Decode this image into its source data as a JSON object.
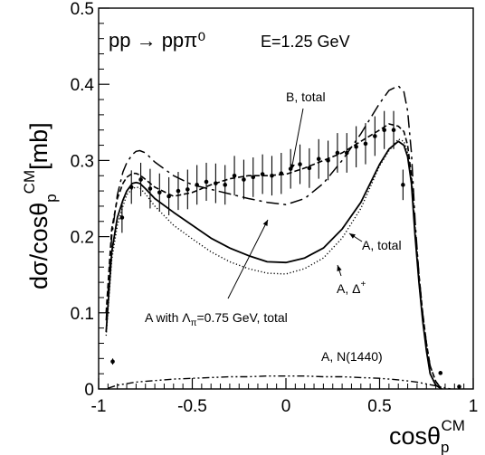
{
  "chart_data": {
    "type": "line",
    "title": "",
    "process": "pp → ppπ⁰",
    "energy": "E=1.25 GeV",
    "ylabel": "dσ/cosθ_p^CM[mb]",
    "xlabel": "cosθ_p^CM",
    "xlim": [
      -1,
      1
    ],
    "ylim": [
      0,
      0.5
    ],
    "xticks": [
      -1,
      -0.5,
      0,
      0.5,
      1
    ],
    "xtick_labels": [
      "-1",
      "-0.5",
      "0",
      "0.5",
      "1"
    ],
    "yticks": [
      0,
      0.1,
      0.2,
      0.3,
      0.4,
      0.5
    ],
    "ytick_labels": [
      "0",
      "0.1",
      "0.2",
      "0.3",
      "0.4",
      "0.5"
    ],
    "grid": false,
    "data_points": {
      "x": [
        -0.925,
        -0.875,
        -0.825,
        -0.775,
        -0.725,
        -0.675,
        -0.625,
        -0.575,
        -0.525,
        -0.475,
        -0.425,
        -0.375,
        -0.325,
        -0.275,
        -0.225,
        -0.175,
        -0.125,
        -0.075,
        -0.025,
        0.025,
        0.075,
        0.125,
        0.175,
        0.225,
        0.275,
        0.325,
        0.375,
        0.425,
        0.475,
        0.525,
        0.575,
        0.625,
        0.675,
        0.725,
        0.775,
        0.825,
        0.875,
        0.925
      ],
      "y": [
        0.036,
        0.225,
        0.265,
        0.275,
        0.263,
        0.258,
        0.253,
        0.26,
        0.262,
        0.268,
        0.272,
        0.27,
        0.268,
        0.28,
        0.275,
        0.278,
        0.282,
        0.28,
        0.283,
        0.289,
        0.295,
        0.29,
        0.302,
        0.3,
        0.31,
        0.31,
        0.318,
        0.322,
        0.332,
        0.34,
        0.34,
        0.268,
        null,
        null,
        null,
        0.021,
        null,
        0.003
      ],
      "err": [
        0.004,
        0.02,
        0.022,
        0.022,
        0.026,
        0.025,
        0.025,
        0.025,
        0.026,
        0.026,
        0.025,
        0.026,
        0.026,
        0.026,
        0.026,
        0.026,
        0.026,
        0.026,
        0.027,
        0.026,
        0.026,
        0.026,
        0.026,
        0.026,
        0.026,
        0.026,
        0.027,
        0.027,
        0.026,
        0.025,
        0.025,
        0.02,
        null,
        null,
        null,
        0.002,
        null,
        0.001
      ]
    },
    "series": [
      {
        "name": "A, total",
        "style": "solid",
        "x": [
          -0.96,
          -0.93,
          -0.9,
          -0.87,
          -0.85,
          -0.82,
          -0.8,
          -0.78,
          -0.75,
          -0.7,
          -0.6,
          -0.5,
          -0.4,
          -0.3,
          -0.2,
          -0.1,
          0,
          0.1,
          0.2,
          0.3,
          0.4,
          0.5,
          0.55,
          0.6,
          0.63,
          0.65,
          0.67,
          0.69,
          0.71,
          0.73,
          0.75,
          0.77,
          0.8,
          0.83
        ],
        "y": [
          0.075,
          0.18,
          0.225,
          0.248,
          0.26,
          0.27,
          0.271,
          0.27,
          0.263,
          0.25,
          0.232,
          0.215,
          0.198,
          0.185,
          0.175,
          0.167,
          0.166,
          0.172,
          0.185,
          0.21,
          0.245,
          0.295,
          0.315,
          0.325,
          0.32,
          0.305,
          0.27,
          0.2,
          0.14,
          0.09,
          0.05,
          0.02,
          0.005,
          0.0
        ]
      },
      {
        "name": "A, Δ⁺",
        "style": "dotted",
        "x": [
          -0.96,
          -0.93,
          -0.9,
          -0.87,
          -0.85,
          -0.82,
          -0.8,
          -0.78,
          -0.75,
          -0.7,
          -0.6,
          -0.5,
          -0.4,
          -0.3,
          -0.2,
          -0.1,
          0,
          0.1,
          0.2,
          0.3,
          0.4,
          0.5,
          0.55,
          0.6,
          0.63,
          0.65,
          0.67,
          0.69,
          0.71,
          0.73,
          0.75,
          0.77,
          0.8,
          0.83
        ],
        "y": [
          0.07,
          0.17,
          0.215,
          0.24,
          0.255,
          0.263,
          0.265,
          0.264,
          0.256,
          0.24,
          0.215,
          0.197,
          0.18,
          0.167,
          0.158,
          0.152,
          0.151,
          0.158,
          0.172,
          0.198,
          0.237,
          0.293,
          0.313,
          0.328,
          0.325,
          0.31,
          0.275,
          0.205,
          0.14,
          0.09,
          0.05,
          0.02,
          0.005,
          0.0
        ]
      },
      {
        "name": "B, total",
        "style": "dashed",
        "x": [
          -0.96,
          -0.93,
          -0.9,
          -0.87,
          -0.85,
          -0.82,
          -0.8,
          -0.78,
          -0.75,
          -0.7,
          -0.6,
          -0.5,
          -0.4,
          -0.3,
          -0.2,
          -0.1,
          0,
          0.1,
          0.2,
          0.3,
          0.4,
          0.5,
          0.55,
          0.6,
          0.63,
          0.65,
          0.67,
          0.69,
          0.71,
          0.73,
          0.75,
          0.77,
          0.8,
          0.83
        ],
        "y": [
          0.1,
          0.21,
          0.25,
          0.27,
          0.278,
          0.283,
          0.283,
          0.281,
          0.275,
          0.265,
          0.253,
          0.258,
          0.268,
          0.276,
          0.28,
          0.28,
          0.282,
          0.29,
          0.3,
          0.31,
          0.325,
          0.34,
          0.348,
          0.345,
          0.338,
          0.32,
          0.28,
          0.21,
          0.15,
          0.1,
          0.06,
          0.03,
          0.01,
          0.0
        ]
      },
      {
        "name": "A with Λπ=0.75 GeV, total",
        "style": "dash-dot",
        "x": [
          -0.96,
          -0.93,
          -0.9,
          -0.87,
          -0.85,
          -0.82,
          -0.8,
          -0.78,
          -0.75,
          -0.7,
          -0.6,
          -0.5,
          -0.4,
          -0.3,
          -0.2,
          -0.1,
          0,
          0.1,
          0.2,
          0.3,
          0.4,
          0.5,
          0.55,
          0.6,
          0.63,
          0.65,
          0.67,
          0.69,
          0.71,
          0.73,
          0.75,
          0.77,
          0.8,
          0.83
        ],
        "y": [
          0.09,
          0.2,
          0.255,
          0.285,
          0.297,
          0.308,
          0.312,
          0.313,
          0.31,
          0.298,
          0.28,
          0.268,
          0.262,
          0.256,
          0.25,
          0.245,
          0.242,
          0.25,
          0.27,
          0.3,
          0.335,
          0.375,
          0.392,
          0.398,
          0.39,
          0.365,
          0.31,
          0.22,
          0.15,
          0.1,
          0.06,
          0.03,
          0.01,
          0.0
        ]
      },
      {
        "name": "A, N(1440)",
        "style": "dash-dot-dot",
        "x": [
          -0.95,
          -0.9,
          -0.8,
          -0.7,
          -0.6,
          -0.5,
          -0.4,
          -0.3,
          -0.2,
          -0.1,
          0,
          0.1,
          0.2,
          0.3,
          0.4,
          0.5,
          0.6,
          0.7,
          0.8,
          0.88
        ],
        "y": [
          0.001,
          0.005,
          0.009,
          0.011,
          0.013,
          0.014,
          0.015,
          0.016,
          0.016,
          0.017,
          0.017,
          0.017,
          0.016,
          0.016,
          0.015,
          0.014,
          0.012,
          0.009,
          0.004,
          0.0
        ]
      }
    ],
    "annotations": {
      "b_total": "B, total",
      "a_total": "A, total",
      "a_delta_main": "A, Δ",
      "a_delta_sup": "+",
      "a_lambda_prefix": "A with Λ",
      "a_lambda_sub": "π",
      "a_lambda_suffix": "=0.75 GeV, total",
      "a_n1440": "A, N(1440)"
    }
  }
}
